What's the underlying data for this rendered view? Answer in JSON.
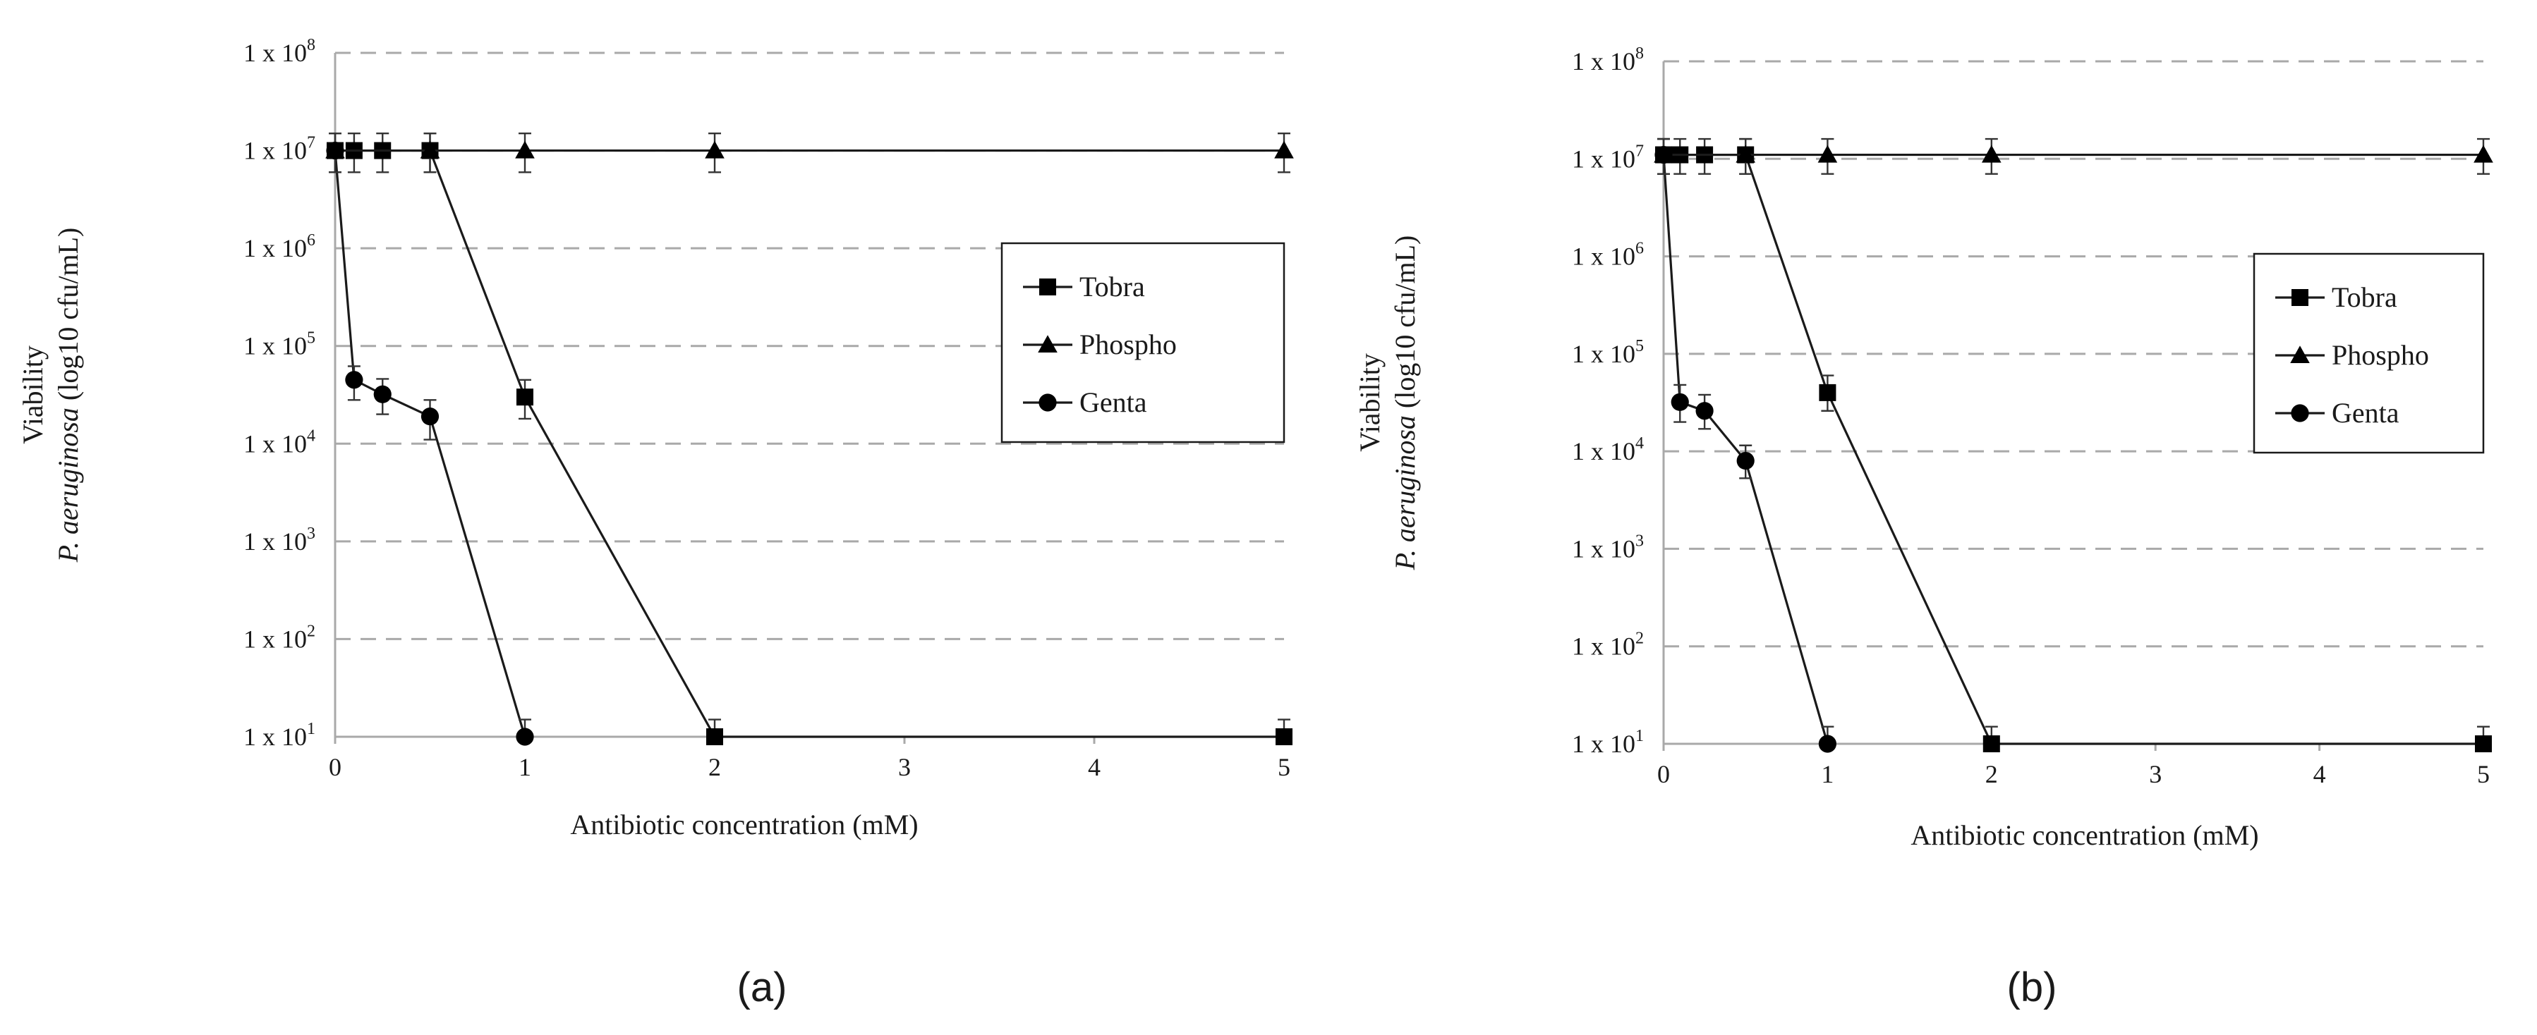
{
  "figure": {
    "panel_labels": [
      "(a)",
      "(b)"
    ]
  },
  "chart_data": [
    {
      "type": "line",
      "panel": "(a)",
      "title": "",
      "xlabel": "Antibiotic concentration (mM)",
      "ylabel_line1": "Viability",
      "ylabel_italic": "P. aeruginosa",
      "ylabel_rest": " (log10 cfu/mL)",
      "y_scale": "log",
      "ylim": [
        10,
        100000000
      ],
      "y_tick_values": [
        10,
        100,
        1000,
        10000,
        100000,
        1000000,
        10000000,
        100000000
      ],
      "y_tick_prefix": "1 x 10",
      "y_tick_exponents": [
        "1",
        "2",
        "3",
        "4",
        "5",
        "6",
        "7",
        "8"
      ],
      "x_tick_positions": [
        0,
        1,
        2,
        3,
        4,
        5
      ],
      "x_tick_labels": [
        "0",
        "1",
        "2",
        "3",
        "4",
        "5"
      ],
      "grid": "horizontal dashed",
      "legend_position": "right-middle",
      "series": [
        {
          "name": "Tobra",
          "marker": "square",
          "x": [
            0,
            0.1,
            0.25,
            0.5,
            1,
            2,
            5
          ],
          "values": [
            10000000,
            10000000,
            10000000,
            10000000,
            30000,
            10,
            10
          ],
          "err_upper": [
            15000000,
            15000000,
            15000000,
            15000000,
            45000,
            15,
            15
          ],
          "err_lower": [
            6000000,
            6000000,
            6000000,
            6000000,
            18000,
            10,
            10
          ]
        },
        {
          "name": "Phospho",
          "marker": "triangle",
          "x": [
            0,
            0.5,
            1,
            2,
            5
          ],
          "values": [
            10000000,
            10000000,
            10000000,
            10000000,
            10000000
          ],
          "err_upper": [
            15000000,
            15000000,
            15000000,
            15000000,
            15000000
          ],
          "err_lower": [
            6000000,
            6000000,
            6000000,
            6000000,
            6000000
          ]
        },
        {
          "name": "Genta",
          "marker": "circle",
          "x": [
            0,
            0.1,
            0.25,
            0.5,
            1
          ],
          "values": [
            10000000,
            45000,
            32000,
            19000,
            10
          ],
          "err_upper": [
            15000000,
            62000,
            46000,
            28000,
            15
          ],
          "err_lower": [
            6000000,
            28000,
            20000,
            11000,
            10
          ]
        }
      ]
    },
    {
      "type": "line",
      "panel": "(b)",
      "title": "",
      "xlabel": "Antibiotic concentration (mM)",
      "ylabel_line1": "Viability",
      "ylabel_italic": "P. aeruginosa",
      "ylabel_rest": " (log10 cfu/mL)",
      "y_scale": "log",
      "ylim": [
        10,
        100000000
      ],
      "y_tick_values": [
        10,
        100,
        1000,
        10000,
        100000,
        1000000,
        10000000,
        100000000
      ],
      "y_tick_prefix": "1 x 10",
      "y_tick_exponents": [
        "1",
        "2",
        "3",
        "4",
        "5",
        "6",
        "7",
        "8"
      ],
      "x_tick_positions": [
        0,
        1,
        2,
        3,
        4,
        5
      ],
      "x_tick_labels": [
        "0",
        "1",
        "2",
        "3",
        "4",
        "5"
      ],
      "grid": "horizontal dashed",
      "legend_position": "right-middle",
      "series": [
        {
          "name": "Tobra",
          "marker": "square",
          "x": [
            0,
            0.1,
            0.25,
            0.5,
            1,
            2,
            5
          ],
          "values": [
            11000000,
            11000000,
            11000000,
            11000000,
            40000,
            10,
            10
          ],
          "err_upper": [
            16000000,
            16000000,
            16000000,
            16000000,
            60000,
            15,
            15
          ],
          "err_lower": [
            7000000,
            7000000,
            7000000,
            7000000,
            26000,
            10,
            10
          ]
        },
        {
          "name": "Phospho",
          "marker": "triangle",
          "x": [
            0,
            0.5,
            1,
            2,
            5
          ],
          "values": [
            11000000,
            11000000,
            11000000,
            11000000,
            11000000
          ],
          "err_upper": [
            16000000,
            16000000,
            16000000,
            16000000,
            16000000
          ],
          "err_lower": [
            7000000,
            7000000,
            7000000,
            7000000,
            7000000
          ]
        },
        {
          "name": "Genta",
          "marker": "circle",
          "x": [
            0,
            0.1,
            0.25,
            0.5,
            1
          ],
          "values": [
            11000000,
            32000,
            26000,
            8000,
            10
          ],
          "err_upper": [
            16000000,
            48000,
            38000,
            11500,
            15
          ],
          "err_lower": [
            7000000,
            20000,
            17000,
            5300,
            10
          ]
        }
      ]
    }
  ]
}
